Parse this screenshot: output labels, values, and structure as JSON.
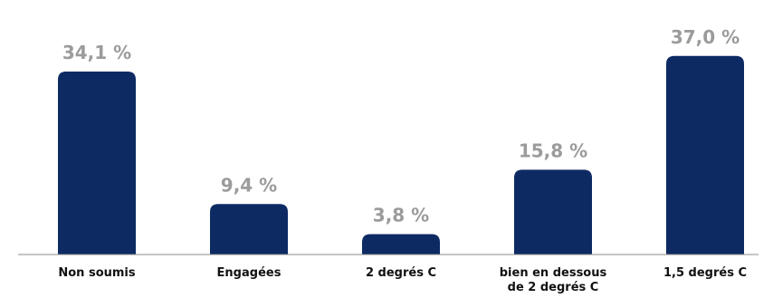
{
  "chart_data": {
    "type": "bar",
    "title": "",
    "xlabel": "",
    "ylabel": "",
    "ylim": [
      0,
      40
    ],
    "grid": false,
    "colors": {
      "bar": "#0d2a63",
      "value_label": "#9b9b9b",
      "category_label": "#111111",
      "axis": "#8c8c8c"
    },
    "categories": [
      [
        "Non soumis"
      ],
      [
        "Engagées"
      ],
      [
        "2 degrés C"
      ],
      [
        "bien en dessous",
        "de 2 degrés C"
      ],
      [
        "1,5 degrés C"
      ]
    ],
    "values": [
      34.1,
      9.4,
      3.8,
      15.8,
      37.0
    ],
    "value_labels": [
      "34,1 %",
      "9,4 %",
      "3,8 %",
      "15,8 %",
      "37,0 %"
    ]
  }
}
